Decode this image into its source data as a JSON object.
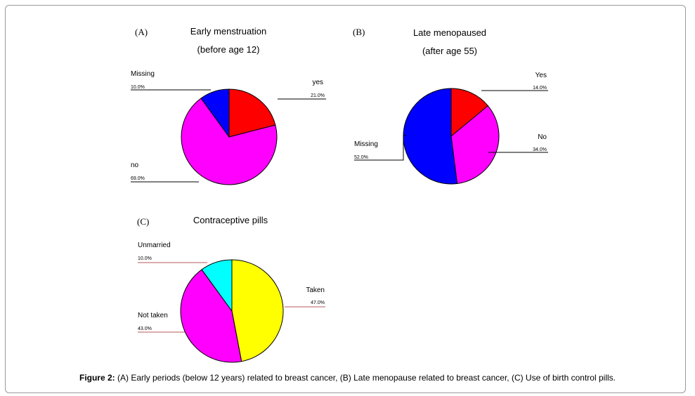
{
  "caption": {
    "label": "Figure 2:",
    "text": " (A) Early periods (below 12 years) related to breast cancer, (B) Late menopause related to breast cancer, (C) Use of birth control pills."
  },
  "chart_data": [
    {
      "type": "pie",
      "panel": "(A)",
      "title": "Early menstruation",
      "subtitle": "(before age 12)",
      "slices": [
        {
          "label": "yes",
          "value": 21.0,
          "pct_label": "21.0%",
          "color": "#ff0000"
        },
        {
          "label": "no",
          "value": 69.0,
          "pct_label": "69.0%",
          "color": "#ff00ff"
        },
        {
          "label": "Missing",
          "value": 10.0,
          "pct_label": "10.0%",
          "color": "#0000ff"
        }
      ]
    },
    {
      "type": "pie",
      "panel": "(B)",
      "title": "Late menopaused",
      "subtitle": "(after age 55)",
      "slices": [
        {
          "label": "Yes",
          "value": 14.0,
          "pct_label": "14.0%",
          "color": "#ff0000"
        },
        {
          "label": "No",
          "value": 34.0,
          "pct_label": "34.0%",
          "color": "#ff00ff"
        },
        {
          "label": "Missing",
          "value": 52.0,
          "pct_label": "52.0%",
          "color": "#0000ff"
        }
      ]
    },
    {
      "type": "pie",
      "panel": "(C)",
      "title": "Contraceptive pills",
      "subtitle": "",
      "slices": [
        {
          "label": "Taken",
          "value": 47.0,
          "pct_label": "47.0%",
          "color": "#ffff00"
        },
        {
          "label": "Not taken",
          "value": 43.0,
          "pct_label": "43.0%",
          "color": "#ff00ff"
        },
        {
          "label": "Unmarried",
          "value": 10.0,
          "pct_label": "10.0%",
          "color": "#00ffff"
        }
      ]
    }
  ]
}
